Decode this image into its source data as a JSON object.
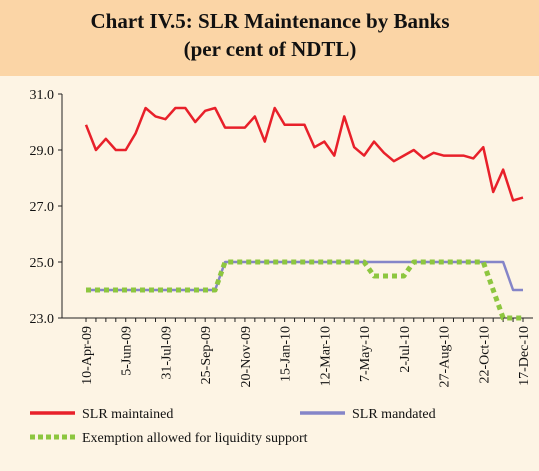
{
  "chart_data": {
    "type": "line",
    "title": "Chart IV.5: SLR Maintenance by Banks",
    "subtitle": "(per cent of NDTL)",
    "categories": [
      "10-Apr-09",
      null,
      null,
      null,
      "5-Jun-09",
      null,
      null,
      null,
      "31-Jul-09",
      null,
      null,
      null,
      "25-Sep-09",
      null,
      null,
      null,
      "20-Nov-09",
      null,
      null,
      null,
      "15-Jan-10",
      null,
      null,
      null,
      "12-Mar-10",
      null,
      null,
      null,
      "7-May-10",
      null,
      null,
      null,
      "2-Jul-10",
      null,
      null,
      null,
      "27-Aug-10",
      null,
      null,
      null,
      "22-Oct-10",
      null,
      null,
      null,
      "17-Dec-10"
    ],
    "series": [
      {
        "name": "SLR maintained",
        "color": "#e8202a",
        "dashed": false,
        "values": [
          29.9,
          29.0,
          29.4,
          29.0,
          29.0,
          29.6,
          30.5,
          30.2,
          30.1,
          30.5,
          30.5,
          30.0,
          30.4,
          30.5,
          29.8,
          29.8,
          29.8,
          30.2,
          29.3,
          30.5,
          29.9,
          29.9,
          29.9,
          29.1,
          29.3,
          28.8,
          30.2,
          29.1,
          28.8,
          29.3,
          28.9,
          28.6,
          28.8,
          29.0,
          28.7,
          28.9,
          28.8,
          28.8,
          28.8,
          28.7,
          29.1,
          27.5,
          28.3,
          27.2,
          27.3
        ]
      },
      {
        "name": "SLR mandated",
        "color": "#8585c8",
        "dashed": false,
        "values": [
          24,
          24,
          24,
          24,
          24,
          24,
          24,
          24,
          24,
          24,
          24,
          24,
          24,
          24,
          25,
          25,
          25,
          25,
          25,
          25,
          25,
          25,
          25,
          25,
          25,
          25,
          25,
          25,
          25,
          25,
          25,
          25,
          25,
          25,
          25,
          25,
          25,
          25,
          25,
          25,
          25,
          25,
          25,
          24,
          24
        ]
      },
      {
        "name": "Exemption allowed for liquidity support",
        "color": "#8dc63f",
        "dashed": true,
        "values": [
          24,
          24,
          24,
          24,
          24,
          24,
          24,
          24,
          24,
          24,
          24,
          24,
          24,
          24,
          25,
          25,
          25,
          25,
          25,
          25,
          25,
          25,
          25,
          25,
          25,
          25,
          25,
          25,
          25,
          24.5,
          24.5,
          24.5,
          24.5,
          25,
          25,
          25,
          25,
          25,
          25,
          25,
          25,
          24,
          23,
          23,
          23
        ]
      }
    ],
    "ylim": [
      23,
      31
    ],
    "yticks": [
      {
        "value": 23,
        "label": "23.0"
      },
      {
        "value": 25,
        "label": "25.0"
      },
      {
        "value": 27,
        "label": "27.0"
      },
      {
        "value": 29,
        "label": "29.0"
      },
      {
        "value": 31,
        "label": "31.0"
      }
    ],
    "grid": false
  }
}
